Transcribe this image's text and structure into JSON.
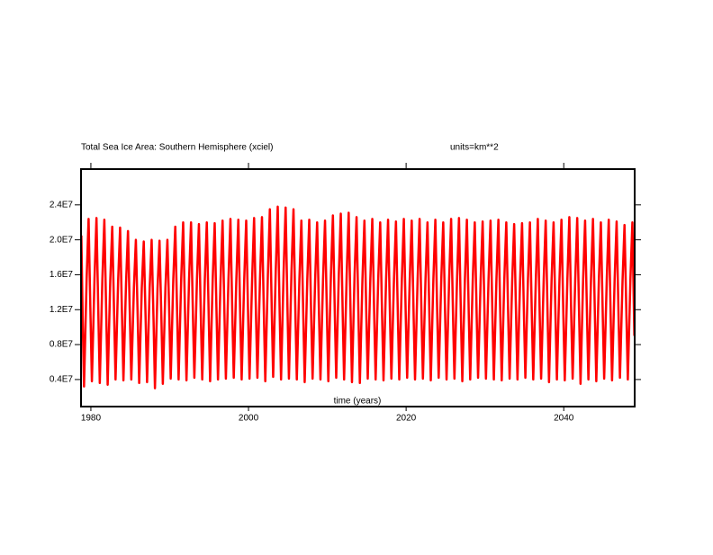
{
  "chart_data": {
    "type": "line",
    "title": "Total Sea Ice Area: Southern Hemisphere (xciel)",
    "units_label": "units=km**2",
    "x_label": "time (years)",
    "xlim": [
      1978.75,
      2049.0
    ],
    "xticks": [
      1980,
      2000,
      2020,
      2040
    ],
    "ylim": [
      900000,
      28100000
    ],
    "yticks": [
      {
        "value": 4000000,
        "label": "0.4E7"
      },
      {
        "value": 8000000,
        "label": "0.8E7"
      },
      {
        "value": 12000000,
        "label": "1.2E7"
      },
      {
        "value": 16000000,
        "label": "1.6E7"
      },
      {
        "value": 20000000,
        "label": "2.0E7"
      },
      {
        "value": 24000000,
        "label": "2.4E7"
      }
    ],
    "x": [
      1978.79,
      1978.96,
      1979.13,
      1979.46,
      1979.71,
      1979.96,
      1980.13,
      1980.46,
      1980.71,
      1980.96,
      1981.13,
      1981.46,
      1981.71,
      1981.96,
      1982.13,
      1982.46,
      1982.71,
      1982.96,
      1983.13,
      1983.46,
      1983.71,
      1983.96,
      1984.13,
      1984.46,
      1984.71,
      1984.96,
      1985.13,
      1985.46,
      1985.71,
      1985.96,
      1986.13,
      1986.46,
      1986.71,
      1986.96,
      1987.13,
      1987.46,
      1987.71,
      1987.96,
      1988.13,
      1988.46,
      1988.71,
      1988.96,
      1989.13,
      1989.46,
      1989.71,
      1989.96,
      1990.13,
      1990.46,
      1990.71,
      1990.96,
      1991.13,
      1991.46,
      1991.71,
      1991.96,
      1992.13,
      1992.46,
      1992.71,
      1992.96,
      1993.13,
      1993.46,
      1993.71,
      1993.96,
      1994.13,
      1994.46,
      1994.71,
      1994.96,
      1995.13,
      1995.46,
      1995.71,
      1995.96,
      1996.13,
      1996.46,
      1996.71,
      1996.96,
      1997.13,
      1997.46,
      1997.71,
      1997.96,
      1998.13,
      1998.46,
      1998.71,
      1998.96,
      1999.13,
      1999.46,
      1999.71,
      1999.96,
      2000.13,
      2000.46,
      2000.71,
      2000.96,
      2001.13,
      2001.46,
      2001.71,
      2001.96,
      2002.13,
      2002.46,
      2002.71,
      2002.96,
      2003.13,
      2003.46,
      2003.71,
      2003.96,
      2004.13,
      2004.46,
      2004.71,
      2004.96,
      2005.13,
      2005.46,
      2005.71,
      2005.96,
      2006.13,
      2006.46,
      2006.71,
      2006.96,
      2007.13,
      2007.46,
      2007.71,
      2007.96,
      2008.13,
      2008.46,
      2008.71,
      2008.96,
      2009.13,
      2009.46,
      2009.71,
      2009.96,
      2010.13,
      2010.46,
      2010.71,
      2010.96,
      2011.13,
      2011.46,
      2011.71,
      2011.96,
      2012.13,
      2012.46,
      2012.71,
      2012.96,
      2013.13,
      2013.46,
      2013.71,
      2013.96,
      2014.13,
      2014.46,
      2014.71,
      2014.96,
      2015.13,
      2015.46,
      2015.71,
      2015.96,
      2016.13,
      2016.46,
      2016.71,
      2016.96,
      2017.13,
      2017.46,
      2017.71,
      2017.96,
      2018.13,
      2018.46,
      2018.71,
      2018.96,
      2019.13,
      2019.46,
      2019.71,
      2019.96,
      2020.13,
      2020.46,
      2020.71,
      2020.96,
      2021.13,
      2021.46,
      2021.71,
      2021.96,
      2022.13,
      2022.46,
      2022.71,
      2022.96,
      2023.13,
      2023.46,
      2023.71,
      2023.96,
      2024.13,
      2024.46,
      2024.71,
      2024.96,
      2025.13,
      2025.46,
      2025.71,
      2025.96,
      2026.13,
      2026.46,
      2026.71,
      2026.96,
      2027.13,
      2027.46,
      2027.71,
      2027.96,
      2028.13,
      2028.46,
      2028.71,
      2028.96,
      2029.13,
      2029.46,
      2029.71,
      2029.96,
      2030.13,
      2030.46,
      2030.71,
      2030.96,
      2031.13,
      2031.46,
      2031.71,
      2031.96,
      2032.13,
      2032.46,
      2032.71,
      2032.96,
      2033.13,
      2033.46,
      2033.71,
      2033.96,
      2034.13,
      2034.46,
      2034.71,
      2034.96,
      2035.13,
      2035.46,
      2035.71,
      2035.96,
      2036.13,
      2036.46,
      2036.71,
      2036.96,
      2037.13,
      2037.46,
      2037.71,
      2037.96,
      2038.13,
      2038.46,
      2038.71,
      2038.96,
      2039.13,
      2039.46,
      2039.71,
      2039.96,
      2040.13,
      2040.46,
      2040.71,
      2040.96,
      2041.13,
      2041.46,
      2041.71,
      2041.96,
      2042.13,
      2042.46,
      2042.71,
      2042.96,
      2043.13,
      2043.46,
      2043.71,
      2043.96,
      2044.13,
      2044.46,
      2044.71,
      2044.96,
      2045.13,
      2045.46,
      2045.71,
      2045.96,
      2046.13,
      2046.46,
      2046.71,
      2046.96,
      2047.13,
      2047.46,
      2047.71,
      2047.96,
      2048.13,
      2048.46,
      2048.71,
      2048.96
    ],
    "series": [
      {
        "color": "#ff0000",
        "values": [
          20500000,
          11000000,
          3200000,
          15500000,
          22400000,
          11000000,
          3800000,
          15500000,
          22500000,
          11000000,
          3600000,
          15500000,
          22300000,
          11000000,
          3400000,
          15300000,
          21500000,
          11000000,
          4000000,
          15300000,
          21400000,
          11000000,
          3900000,
          15000000,
          21000000,
          10800000,
          4000000,
          14500000,
          20000000,
          10500000,
          3600000,
          14500000,
          19800000,
          10500000,
          3700000,
          14500000,
          20000000,
          10500000,
          3000000,
          14500000,
          19900000,
          10500000,
          3500000,
          14500000,
          20000000,
          11000000,
          4100000,
          15500000,
          21500000,
          11000000,
          4000000,
          15500000,
          22000000,
          11000000,
          3900000,
          15500000,
          22000000,
          11000000,
          4200000,
          15500000,
          21800000,
          11000000,
          4000000,
          15500000,
          22000000,
          11000000,
          3800000,
          15500000,
          21900000,
          11000000,
          4000000,
          15500000,
          22200000,
          11000000,
          4100000,
          15500000,
          22400000,
          11000000,
          4200000,
          15500000,
          22300000,
          11000000,
          4000000,
          15500000,
          22200000,
          11000000,
          4100000,
          15500000,
          22500000,
          11000000,
          4200000,
          15500000,
          22600000,
          11200000,
          3800000,
          16000000,
          23500000,
          11500000,
          4300000,
          16500000,
          23800000,
          11500000,
          4000000,
          16500000,
          23700000,
          11500000,
          4100000,
          16500000,
          23500000,
          11200000,
          4000000,
          15500000,
          22200000,
          11000000,
          3700000,
          15500000,
          22300000,
          11000000,
          4100000,
          15500000,
          22000000,
          11000000,
          4000000,
          15500000,
          22200000,
          11000000,
          3800000,
          16000000,
          22800000,
          11200000,
          4200000,
          16000000,
          23000000,
          11200000,
          4000000,
          16000000,
          23100000,
          11200000,
          3700000,
          16000000,
          22600000,
          11000000,
          3600000,
          15500000,
          22200000,
          11000000,
          4100000,
          15500000,
          22400000,
          11000000,
          4000000,
          15500000,
          22000000,
          11000000,
          3900000,
          15500000,
          22300000,
          11000000,
          4100000,
          15500000,
          22100000,
          11000000,
          4000000,
          15500000,
          22400000,
          11000000,
          4200000,
          15500000,
          22200000,
          11000000,
          4000000,
          15500000,
          22400000,
          11000000,
          4100000,
          15500000,
          22000000,
          11000000,
          3900000,
          15500000,
          22300000,
          11000000,
          4200000,
          15500000,
          22000000,
          11000000,
          4000000,
          15500000,
          22400000,
          11000000,
          4100000,
          15500000,
          22500000,
          11000000,
          3800000,
          15500000,
          22300000,
          11000000,
          4000000,
          15500000,
          22000000,
          11000000,
          4200000,
          15500000,
          22100000,
          11000000,
          4100000,
          15500000,
          22200000,
          11000000,
          4000000,
          15500000,
          22300000,
          11000000,
          3900000,
          15500000,
          22000000,
          11000000,
          4100000,
          15300000,
          21800000,
          11000000,
          4000000,
          15300000,
          21900000,
          11000000,
          4200000,
          15500000,
          22000000,
          11000000,
          4000000,
          15500000,
          22400000,
          11000000,
          4100000,
          15500000,
          22200000,
          11000000,
          3700000,
          15500000,
          22000000,
          11000000,
          4000000,
          15500000,
          22300000,
          11000000,
          3900000,
          15500000,
          22600000,
          11000000,
          4100000,
          15500000,
          22500000,
          11000000,
          3500000,
          15500000,
          22200000,
          11000000,
          4000000,
          15500000,
          22400000,
          11000000,
          3800000,
          15500000,
          22000000,
          11000000,
          4100000,
          15500000,
          22300000,
          11000000,
          3900000,
          15500000,
          22100000,
          11000000,
          4200000,
          15300000,
          21700000,
          11000000,
          4000000,
          15500000,
          22000000,
          9000000
        ]
      }
    ]
  }
}
